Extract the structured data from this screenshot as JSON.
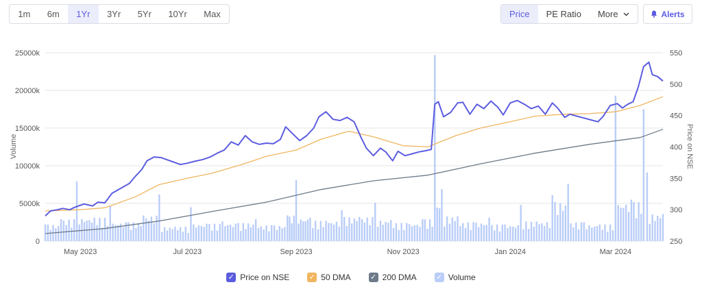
{
  "range_buttons": [
    {
      "label": "1m"
    },
    {
      "label": "6m"
    },
    {
      "label": "1Yr"
    },
    {
      "label": "3Yr"
    },
    {
      "label": "5Yr"
    },
    {
      "label": "10Yr"
    },
    {
      "label": "Max"
    }
  ],
  "active_range": "1Yr",
  "metric_buttons": {
    "price": "Price",
    "pe_ratio": "PE Ratio",
    "more": "More"
  },
  "active_metric": "Price",
  "alerts_label": "Alerts",
  "icons": {
    "alerts": "bell-icon",
    "more": "chevron-down-icon"
  },
  "colors": {
    "price": "#5b5ce0",
    "dma50": "#f0b55e",
    "dma200": "#6c7a89",
    "volume": "#b9cdf8"
  },
  "chart_data": {
    "type": "line",
    "x_tick_labels": [
      "May 2023",
      "Jul 2023",
      "Sep 2023",
      "Nov 2023",
      "Jan 2024",
      "Mar 2024"
    ],
    "x_tick_dates": [
      "2023-05-01",
      "2023-07-01",
      "2023-09-01",
      "2023-11-01",
      "2024-01-01",
      "2024-03-01"
    ],
    "x_range": [
      "2023-04-11",
      "2024-03-28"
    ],
    "y_left": {
      "label": "Volume",
      "range": [
        0,
        25000000
      ],
      "ticks": [
        "0",
        "5000k",
        "10000k",
        "15000k",
        "20000k",
        "25000k"
      ]
    },
    "y_right": {
      "label": "Price on NSE",
      "range": [
        250,
        550
      ],
      "ticks": [
        "250",
        "300",
        "350",
        "400",
        "450",
        "500",
        "550"
      ]
    },
    "series": [
      {
        "name": "Price on NSE",
        "type": "line",
        "axis": "right",
        "points": [
          [
            "2023-04-11",
            290
          ],
          [
            "2023-04-14",
            298
          ],
          [
            "2023-04-18",
            300
          ],
          [
            "2023-04-21",
            302
          ],
          [
            "2023-04-25",
            300
          ],
          [
            "2023-04-28",
            304
          ],
          [
            "2023-05-03",
            309
          ],
          [
            "2023-05-08",
            306
          ],
          [
            "2023-05-11",
            312
          ],
          [
            "2023-05-15",
            311
          ],
          [
            "2023-05-19",
            326
          ],
          [
            "2023-05-24",
            334
          ],
          [
            "2023-05-29",
            342
          ],
          [
            "2023-06-01",
            352
          ],
          [
            "2023-06-05",
            364
          ],
          [
            "2023-06-08",
            378
          ],
          [
            "2023-06-12",
            384
          ],
          [
            "2023-06-16",
            383
          ],
          [
            "2023-06-20",
            379
          ],
          [
            "2023-06-23",
            376
          ],
          [
            "2023-06-27",
            372
          ],
          [
            "2023-07-01",
            374
          ],
          [
            "2023-07-05",
            377
          ],
          [
            "2023-07-10",
            380
          ],
          [
            "2023-07-14",
            384
          ],
          [
            "2023-07-18",
            390
          ],
          [
            "2023-07-22",
            395
          ],
          [
            "2023-07-26",
            408
          ],
          [
            "2023-07-30",
            403
          ],
          [
            "2023-08-03",
            418
          ],
          [
            "2023-08-07",
            408
          ],
          [
            "2023-08-11",
            404
          ],
          [
            "2023-08-15",
            406
          ],
          [
            "2023-08-19",
            405
          ],
          [
            "2023-08-23",
            412
          ],
          [
            "2023-08-26",
            432
          ],
          [
            "2023-08-30",
            421
          ],
          [
            "2023-09-03",
            410
          ],
          [
            "2023-09-07",
            418
          ],
          [
            "2023-09-11",
            430
          ],
          [
            "2023-09-14",
            448
          ],
          [
            "2023-09-18",
            456
          ],
          [
            "2023-09-22",
            444
          ],
          [
            "2023-09-26",
            442
          ],
          [
            "2023-09-30",
            447
          ],
          [
            "2023-10-04",
            440
          ],
          [
            "2023-10-08",
            415
          ],
          [
            "2023-10-11",
            398
          ],
          [
            "2023-10-15",
            386
          ],
          [
            "2023-10-19",
            398
          ],
          [
            "2023-10-22",
            392
          ],
          [
            "2023-10-26",
            378
          ],
          [
            "2023-10-29",
            393
          ],
          [
            "2023-11-02",
            386
          ],
          [
            "2023-11-06",
            389
          ],
          [
            "2023-11-10",
            392
          ],
          [
            "2023-11-14",
            394
          ],
          [
            "2023-11-17",
            396
          ],
          [
            "2023-11-19",
            468
          ],
          [
            "2023-11-21",
            472
          ],
          [
            "2023-11-24",
            448
          ],
          [
            "2023-11-28",
            455
          ],
          [
            "2023-12-02",
            470
          ],
          [
            "2023-12-05",
            471
          ],
          [
            "2023-12-09",
            452
          ],
          [
            "2023-12-13",
            468
          ],
          [
            "2023-12-17",
            461
          ],
          [
            "2023-12-21",
            473
          ],
          [
            "2023-12-25",
            463
          ],
          [
            "2023-12-28",
            451
          ],
          [
            "2024-01-01",
            470
          ],
          [
            "2024-01-05",
            474
          ],
          [
            "2024-01-09",
            468
          ],
          [
            "2024-01-13",
            461
          ],
          [
            "2024-01-17",
            465
          ],
          [
            "2024-01-21",
            452
          ],
          [
            "2024-01-25",
            470
          ],
          [
            "2024-01-28",
            462
          ],
          [
            "2024-02-01",
            447
          ],
          [
            "2024-02-04",
            452
          ],
          [
            "2024-02-08",
            449
          ],
          [
            "2024-02-12",
            446
          ],
          [
            "2024-02-16",
            443
          ],
          [
            "2024-02-20",
            440
          ],
          [
            "2024-02-23",
            449
          ],
          [
            "2024-02-27",
            466
          ],
          [
            "2024-03-02",
            469
          ],
          [
            "2024-03-05",
            462
          ],
          [
            "2024-03-08",
            468
          ],
          [
            "2024-03-11",
            472
          ],
          [
            "2024-03-14",
            496
          ],
          [
            "2024-03-17",
            528
          ],
          [
            "2024-03-20",
            535
          ],
          [
            "2024-03-22",
            515
          ],
          [
            "2024-03-25",
            512
          ],
          [
            "2024-03-28",
            505
          ]
        ]
      },
      {
        "name": "50 DMA",
        "type": "line",
        "axis": "right",
        "points": [
          [
            "2023-04-11",
            298
          ],
          [
            "2023-05-01",
            300
          ],
          [
            "2023-05-15",
            303
          ],
          [
            "2023-06-01",
            320
          ],
          [
            "2023-06-15",
            340
          ],
          [
            "2023-07-01",
            350
          ],
          [
            "2023-07-15",
            358
          ],
          [
            "2023-08-01",
            372
          ],
          [
            "2023-08-15",
            385
          ],
          [
            "2023-09-01",
            395
          ],
          [
            "2023-09-15",
            412
          ],
          [
            "2023-10-01",
            425
          ],
          [
            "2023-10-15",
            416
          ],
          [
            "2023-11-01",
            402
          ],
          [
            "2023-11-15",
            400
          ],
          [
            "2023-12-01",
            418
          ],
          [
            "2023-12-15",
            430
          ],
          [
            "2024-01-01",
            440
          ],
          [
            "2024-01-15",
            449
          ],
          [
            "2024-02-01",
            452
          ],
          [
            "2024-02-15",
            453
          ],
          [
            "2024-03-01",
            456
          ],
          [
            "2024-03-15",
            466
          ],
          [
            "2024-03-28",
            480
          ]
        ]
      },
      {
        "name": "200 DMA",
        "type": "line",
        "axis": "right",
        "points": [
          [
            "2023-04-11",
            262
          ],
          [
            "2023-05-15",
            270
          ],
          [
            "2023-06-15",
            282
          ],
          [
            "2023-07-15",
            297
          ],
          [
            "2023-08-15",
            312
          ],
          [
            "2023-09-15",
            332
          ],
          [
            "2023-10-15",
            346
          ],
          [
            "2023-11-15",
            355
          ],
          [
            "2023-12-15",
            373
          ],
          [
            "2024-01-15",
            390
          ],
          [
            "2024-02-15",
            404
          ],
          [
            "2024-03-15",
            415
          ],
          [
            "2024-03-28",
            428
          ]
        ]
      },
      {
        "name": "Volume",
        "type": "bar",
        "axis": "left",
        "points": [
          [
            "2023-04-11",
            2200000
          ],
          [
            "2023-04-20",
            2900000
          ],
          [
            "2023-04-29",
            7900000
          ],
          [
            "2023-05-09",
            3100000
          ],
          [
            "2023-05-18",
            4700000
          ],
          [
            "2023-05-27",
            2500000
          ],
          [
            "2023-06-06",
            3400000
          ],
          [
            "2023-06-15",
            6200000
          ],
          [
            "2023-06-24",
            1900000
          ],
          [
            "2023-07-03",
            4500000
          ],
          [
            "2023-07-12",
            2300000
          ],
          [
            "2023-07-21",
            2600000
          ],
          [
            "2023-07-30",
            2400000
          ],
          [
            "2023-08-09",
            2900000
          ],
          [
            "2023-08-18",
            2100000
          ],
          [
            "2023-08-27",
            3400000
          ],
          [
            "2023-09-01",
            8100000
          ],
          [
            "2023-09-09",
            3100000
          ],
          [
            "2023-09-18",
            2700000
          ],
          [
            "2023-09-27",
            4100000
          ],
          [
            "2023-10-07",
            3200000
          ],
          [
            "2023-10-16",
            5100000
          ],
          [
            "2023-10-25",
            2800000
          ],
          [
            "2023-11-03",
            2400000
          ],
          [
            "2023-11-12",
            2900000
          ],
          [
            "2023-11-19",
            24700000
          ],
          [
            "2023-11-23",
            6900000
          ],
          [
            "2023-12-02",
            3300000
          ],
          [
            "2023-12-11",
            2500000
          ],
          [
            "2023-12-20",
            3100000
          ],
          [
            "2023-12-29",
            2200000
          ],
          [
            "2024-01-07",
            4800000
          ],
          [
            "2024-01-16",
            2600000
          ],
          [
            "2024-01-25",
            6100000
          ],
          [
            "2024-02-03",
            7600000
          ],
          [
            "2024-02-12",
            2500000
          ],
          [
            "2024-02-21",
            2200000
          ],
          [
            "2024-03-01",
            19300000
          ],
          [
            "2024-03-10",
            5500000
          ],
          [
            "2024-03-17",
            17500000
          ],
          [
            "2024-03-19",
            9100000
          ],
          [
            "2024-03-28",
            3600000
          ]
        ]
      }
    ],
    "legend_position": "bottom",
    "grid": "horizontal"
  }
}
